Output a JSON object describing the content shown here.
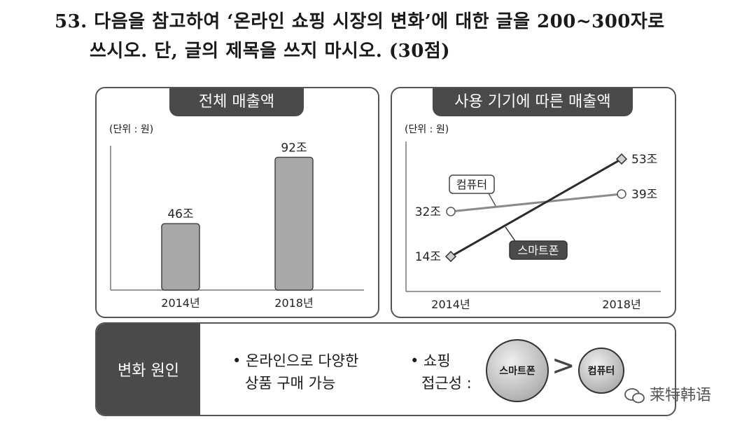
{
  "question": {
    "line1": "53. 다음을 참고하여 ‘온라인 쇼핑 시장의 변화’에 대한 글을 200~300자로",
    "line2": "쓰시오. 단, 글의 제목을 쓰지 마시오. (30점)"
  },
  "chart_data": [
    {
      "type": "bar",
      "title": "전체 매출액",
      "unit_label": "(단위 : 원)",
      "categories": [
        "2014년",
        "2018년"
      ],
      "values": [
        46,
        92
      ],
      "value_labels": [
        "46조",
        "92조"
      ],
      "ylim": [
        0,
        100
      ],
      "grid": false
    },
    {
      "type": "line",
      "title": "사용 기기에 따른 매출액",
      "unit_label": "(단위 : 원)",
      "x": [
        "2014년",
        "2018년"
      ],
      "ylim": [
        0,
        60
      ],
      "grid": false,
      "series": [
        {
          "name": "컴퓨터",
          "values": [
            32,
            39
          ],
          "value_labels": [
            "32조",
            "39조"
          ],
          "marker": "circle",
          "color": "#8a8a8a"
        },
        {
          "name": "스마트폰",
          "values": [
            14,
            53
          ],
          "value_labels": [
            "14조",
            "53조"
          ],
          "marker": "diamond",
          "color": "#2b2b2b"
        }
      ]
    }
  ],
  "cause": {
    "label": "변화 원인",
    "bullet1_line1": "• 온라인으로 다양한",
    "bullet1_line2": "상품 구매 가능",
    "bullet2_line1": "• 쇼핑",
    "bullet2_line2": "접근성 :",
    "circle_big": "스마트폰",
    "arrow": ">",
    "circle_small": "컴퓨터"
  },
  "watermark": "莱特韩语"
}
